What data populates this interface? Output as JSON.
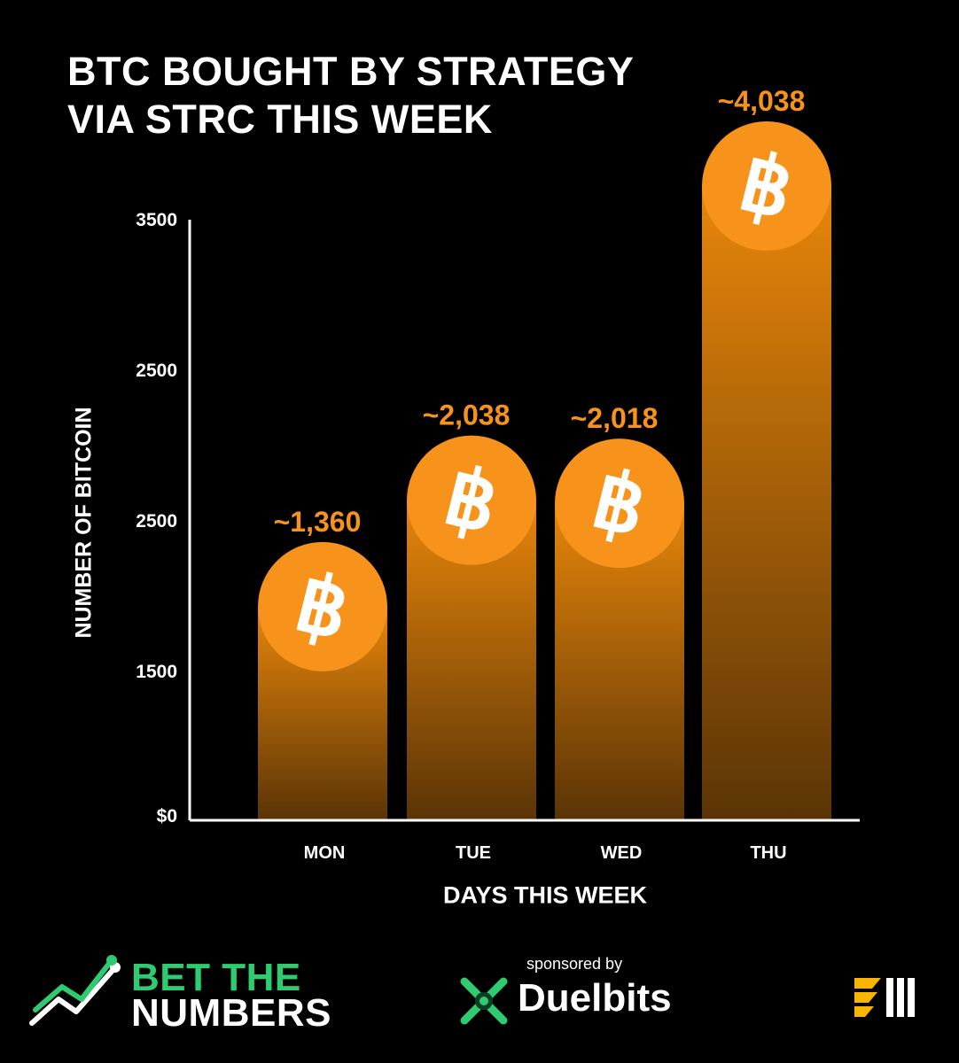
{
  "title_lines": [
    "BTC BOUGHT BY STRATEGY",
    "VIA STRC THIS WEEK"
  ],
  "colors": {
    "background": "#000000",
    "bar_top": "#e8860a",
    "bar_bottom": "#5a3406",
    "coin": "#f7931a",
    "value_label": "#f7931a",
    "axis": "#ffffff",
    "brand_green": "#2ecc71"
  },
  "chart_data": {
    "type": "bar",
    "title": "BTC BOUGHT BY STRATEGY VIA STRC THIS WEEK",
    "xlabel": "DAYS THIS WEEK",
    "ylabel": "NUMBER OF BITCOIN",
    "categories": [
      "MON",
      "TUE",
      "WED",
      "THU"
    ],
    "values": [
      1360,
      2038,
      2018,
      4038
    ],
    "value_labels": [
      "~1,360",
      "~2,038",
      "~2,018",
      "~4,038"
    ],
    "y_tick_labels": [
      "$0",
      "1500",
      "2500",
      "2500",
      "3500"
    ],
    "bar_icon": "bitcoin-icon",
    "grid": false,
    "legend": "none"
  },
  "footer": {
    "brand_line1": "BET THE",
    "brand_line2": "NUMBERS",
    "sponsored_by": "sponsored by",
    "sponsor_name": "Duelbits",
    "sponsor_icon": "crossed-swords-icon",
    "corner_icon": "bars-logo-icon"
  }
}
